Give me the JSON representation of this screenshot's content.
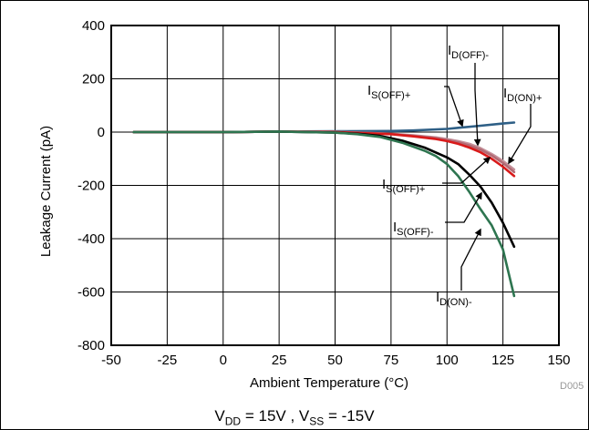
{
  "chart_data": {
    "type": "line",
    "xlabel": "Ambient Temperature (°C)",
    "ylabel": "Leakage Current (pA)",
    "xlim": [
      -50,
      150
    ],
    "ylim": [
      -800,
      400
    ],
    "xticks": [
      -50,
      -25,
      0,
      25,
      50,
      75,
      100,
      125,
      150
    ],
    "yticks": [
      400,
      200,
      0,
      -200,
      -400,
      -600,
      -800
    ],
    "grid": true,
    "code": "D005",
    "condition": {
      "vdd_label": "V",
      "vdd_sub": "DD",
      "vdd_value": " = 15V ,  ",
      "vss_label": "V",
      "vss_sub": "SS",
      "vss_value": " = -15V"
    },
    "series": [
      {
        "main": "I",
        "sub": "S(OFF)+",
        "color": "#2e5f86",
        "x": [
          -40,
          -25,
          0,
          25,
          50,
          75,
          85,
          100,
          105,
          115,
          125,
          130
        ],
        "y": [
          0,
          0,
          0,
          2,
          3,
          4,
          6,
          12,
          16,
          24,
          32,
          36
        ]
      },
      {
        "main": "I",
        "sub": "D(OFF)-",
        "color": "#c4919a",
        "x": [
          -40,
          -25,
          0,
          25,
          50,
          75,
          85,
          95,
          100,
          105,
          110,
          115,
          120,
          125,
          130
        ],
        "y": [
          0,
          0,
          0,
          2,
          1,
          -6,
          -12,
          -20,
          -26,
          -34,
          -44,
          -60,
          -82,
          -108,
          -140
        ]
      },
      {
        "main": "I",
        "sub": "D(ON)+",
        "color": "#b36a74",
        "x": [
          -40,
          -25,
          0,
          25,
          50,
          75,
          85,
          95,
          100,
          105,
          110,
          115,
          120,
          125,
          130
        ],
        "y": [
          0,
          0,
          0,
          2,
          1,
          -7,
          -14,
          -23,
          -30,
          -38,
          -50,
          -66,
          -88,
          -116,
          -150
        ]
      },
      {
        "main": "I",
        "sub": "S(OFF)+",
        "color": "#d91a1a",
        "x": [
          -40,
          -25,
          0,
          25,
          50,
          75,
          85,
          95,
          100,
          105,
          110,
          115,
          120,
          125,
          130
        ],
        "y": [
          0,
          0,
          0,
          2,
          0,
          -8,
          -16,
          -26,
          -34,
          -44,
          -58,
          -76,
          -100,
          -130,
          -165
        ]
      },
      {
        "main": "I",
        "sub": "S(OFF)-",
        "color": "#000000",
        "x": [
          -40,
          -25,
          0,
          25,
          50,
          60,
          70,
          80,
          90,
          100,
          105,
          110,
          115,
          120,
          125,
          130
        ],
        "y": [
          0,
          0,
          0,
          2,
          -2,
          -6,
          -14,
          -32,
          -58,
          -95,
          -120,
          -160,
          -205,
          -265,
          -340,
          -430
        ]
      },
      {
        "main": "I",
        "sub": "D(ON)-",
        "color": "#2e7550",
        "x": [
          -40,
          -25,
          0,
          25,
          50,
          60,
          70,
          80,
          90,
          95,
          100,
          105,
          110,
          115,
          120,
          125,
          130
        ],
        "y": [
          0,
          0,
          0,
          2,
          -2,
          -8,
          -18,
          -40,
          -70,
          -90,
          -120,
          -165,
          -225,
          -290,
          -350,
          -440,
          -615
        ]
      }
    ],
    "annotations": [
      {
        "main": "I",
        "sub": "D(OFF)-"
      },
      {
        "main": "I",
        "sub": "S(OFF)+"
      },
      {
        "main": "I",
        "sub": "D(ON)+"
      },
      {
        "main": "I",
        "sub": "S(OFF)+"
      },
      {
        "main": "I",
        "sub": "S(OFF)-"
      },
      {
        "main": "I",
        "sub": "D(ON)-"
      }
    ]
  }
}
